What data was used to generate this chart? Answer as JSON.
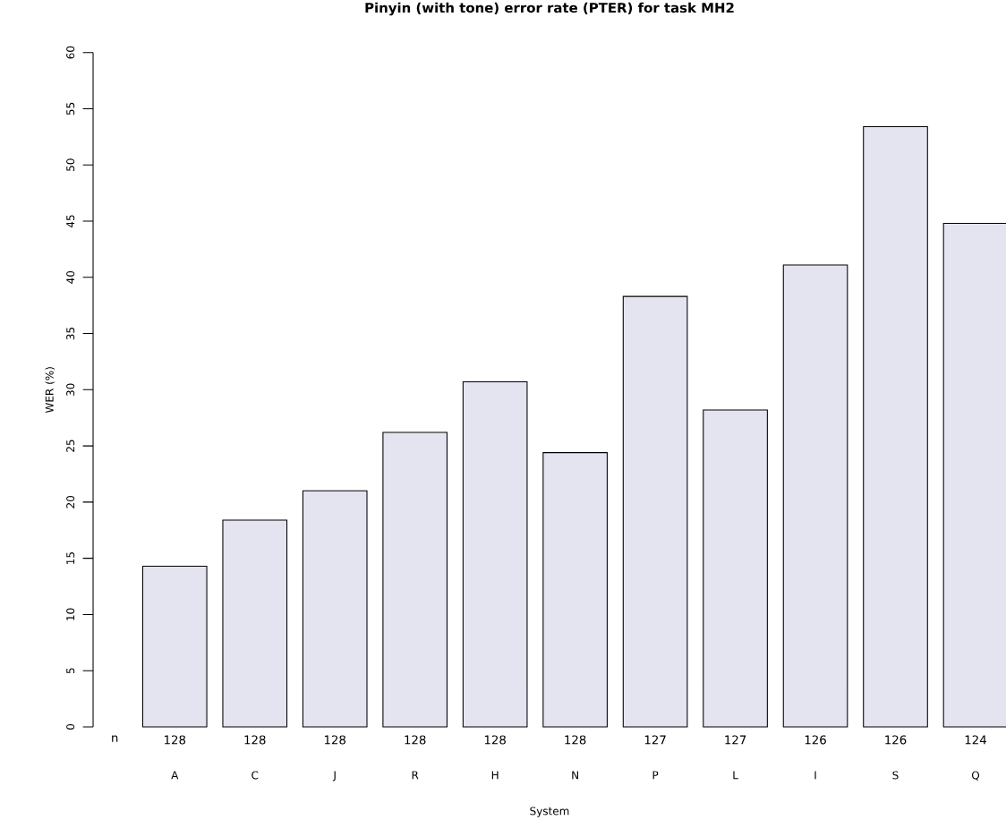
{
  "chart_data": {
    "type": "bar",
    "title": "Pinyin (with tone) error rate (PTER) for task MH2",
    "xlabel": "System",
    "ylabel": "WER (%)",
    "categories": [
      "A",
      "C",
      "J",
      "R",
      "H",
      "N",
      "P",
      "L",
      "I",
      "S",
      "Q"
    ],
    "values": [
      14.3,
      18.4,
      21.0,
      26.2,
      30.7,
      24.4,
      38.3,
      28.2,
      41.1,
      53.4,
      44.8
    ],
    "color": "#e4e4f0",
    "ylim": [
      0,
      60
    ],
    "yticks": [
      0,
      5,
      10,
      15,
      20,
      25,
      30,
      35,
      40,
      45,
      50,
      55,
      60
    ],
    "annotations": [
      "n",
      "128",
      "128",
      "128",
      "128",
      "128",
      "128",
      "127",
      "127",
      "126",
      "126",
      "124"
    ]
  }
}
